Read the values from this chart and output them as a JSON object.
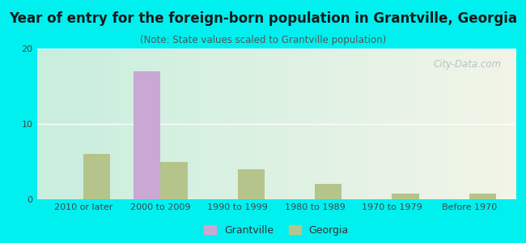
{
  "title": "Year of entry for the foreign-born population in Grantville, Georgia",
  "subtitle": "(Note: State values scaled to Grantville population)",
  "categories": [
    "2010 or later",
    "2000 to 2009",
    "1990 to 1999",
    "1980 to 1989",
    "1970 to 1979",
    "Before 1970"
  ],
  "grantville_values": [
    0,
    17,
    0,
    0,
    0,
    0
  ],
  "georgia_values": [
    6,
    5,
    4,
    2,
    0.8,
    0.8
  ],
  "grantville_color": "#c9a8d4",
  "georgia_color": "#b5c48a",
  "background_outer": "#00f0f0",
  "background_inner_start": "#c8eede",
  "background_inner_end": "#f2f5e8",
  "ylim": [
    0,
    20
  ],
  "yticks": [
    0,
    10,
    20
  ],
  "bar_width": 0.35,
  "figsize": [
    6.5,
    3.0
  ],
  "dpi": 100,
  "title_fontsize": 12,
  "subtitle_fontsize": 8.5,
  "axis_label_fontsize": 8,
  "legend_fontsize": 9,
  "watermark": "City-Data.com",
  "grid_color": "#ffffff"
}
